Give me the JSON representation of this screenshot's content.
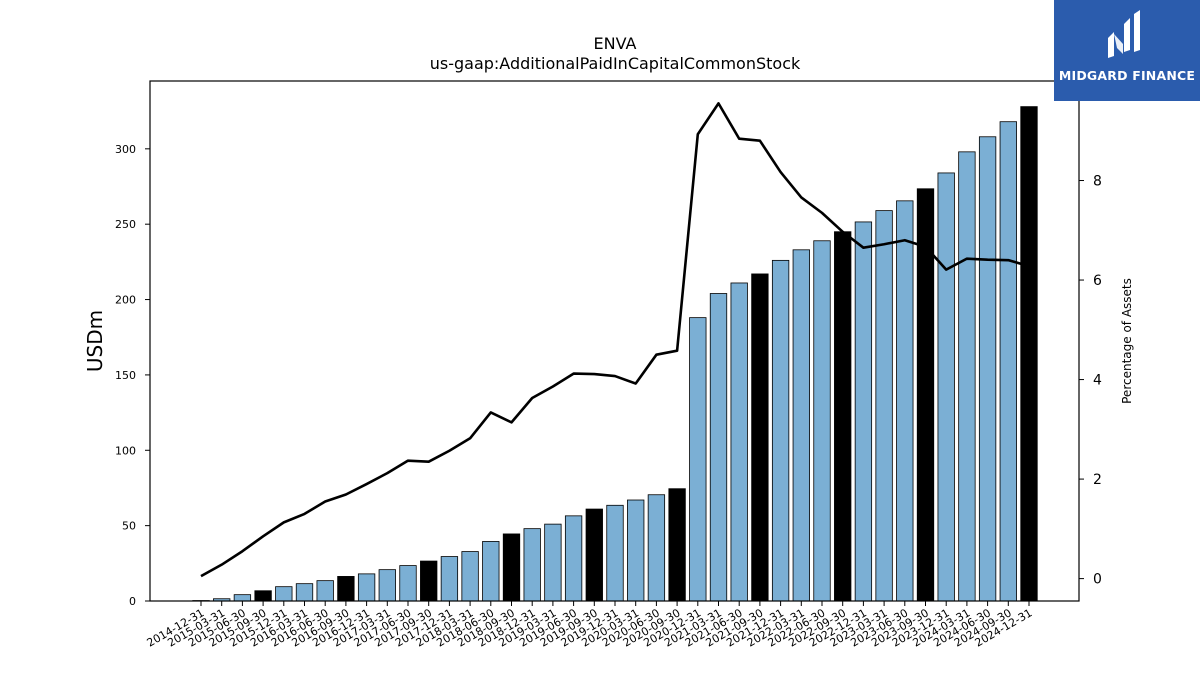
{
  "brand": {
    "name": "MIDGARD FINANCE",
    "bg_color": "#2b5cad"
  },
  "chart_data": {
    "type": "bar",
    "title": "ENVA",
    "subtitle": "us-gaap:AdditionalPaidInCapitalCommonStock",
    "ylabel": "USDm",
    "y2label": "Percentage of Assets",
    "ylim": [
      0,
      345
    ],
    "y2lim": [
      -0.45,
      10.0
    ],
    "yticks": [
      0,
      50,
      100,
      150,
      200,
      250,
      300
    ],
    "y2ticks": [
      0,
      2,
      4,
      6,
      8
    ],
    "categories": [
      "2014-12-31",
      "2015-03-31",
      "2015-06-30",
      "2015-09-30",
      "2015-12-31",
      "2016-03-31",
      "2016-06-30",
      "2016-09-30",
      "2016-12-31",
      "2017-03-31",
      "2017-06-30",
      "2017-09-30",
      "2017-12-31",
      "2018-03-31",
      "2018-06-30",
      "2018-09-30",
      "2018-12-31",
      "2019-03-31",
      "2019-06-30",
      "2019-09-30",
      "2019-12-31",
      "2020-03-31",
      "2020-06-30",
      "2020-09-30",
      "2020-12-31",
      "2021-03-31",
      "2021-06-30",
      "2021-09-30",
      "2021-12-31",
      "2022-03-31",
      "2022-06-30",
      "2022-09-30",
      "2022-12-31",
      "2023-03-31",
      "2023-06-30",
      "2023-09-30",
      "2023-12-31",
      "2024-03-31",
      "2024-06-30",
      "2024-09-30",
      "2024-12-31"
    ],
    "series": [
      {
        "type": "bar",
        "values": [
          0.3,
          1.5,
          4.2,
          6.8,
          9.5,
          11.5,
          13.5,
          16.3,
          18.0,
          20.8,
          23.5,
          26.5,
          29.5,
          32.8,
          39.5,
          44.5,
          48.0,
          51.0,
          56.5,
          61.0,
          63.5,
          67.0,
          70.5,
          74.5,
          188.0,
          204.0,
          211.0,
          217.0,
          226.0,
          233.0,
          239.0,
          245.0,
          251.5,
          259.0,
          265.5,
          273.5,
          284.0,
          298.0,
          308.0,
          318.0,
          328.0
        ],
        "highlight": [
          "2015-09-30",
          "2016-09-30",
          "2017-09-30",
          "2018-09-30",
          "2019-09-30",
          "2020-09-30",
          "2021-09-30",
          "2022-09-30",
          "2023-09-30",
          "2024-12-31"
        ],
        "color": "#7bafd4",
        "highlight_color": "#000000"
      },
      {
        "type": "line",
        "axis": "right",
        "values": [
          0.05,
          0.28,
          0.55,
          0.85,
          1.13,
          1.3,
          1.55,
          1.69,
          1.9,
          2.12,
          2.37,
          2.35,
          2.57,
          2.82,
          3.34,
          3.14,
          3.63,
          3.86,
          4.12,
          4.11,
          4.07,
          3.92,
          4.5,
          4.58,
          8.93,
          9.55,
          8.84,
          8.8,
          8.17,
          7.66,
          7.35,
          6.97,
          6.65,
          6.72,
          6.8,
          6.67,
          6.21,
          6.43,
          6.41,
          6.4,
          6.28
        ],
        "color": "#000000"
      }
    ]
  }
}
